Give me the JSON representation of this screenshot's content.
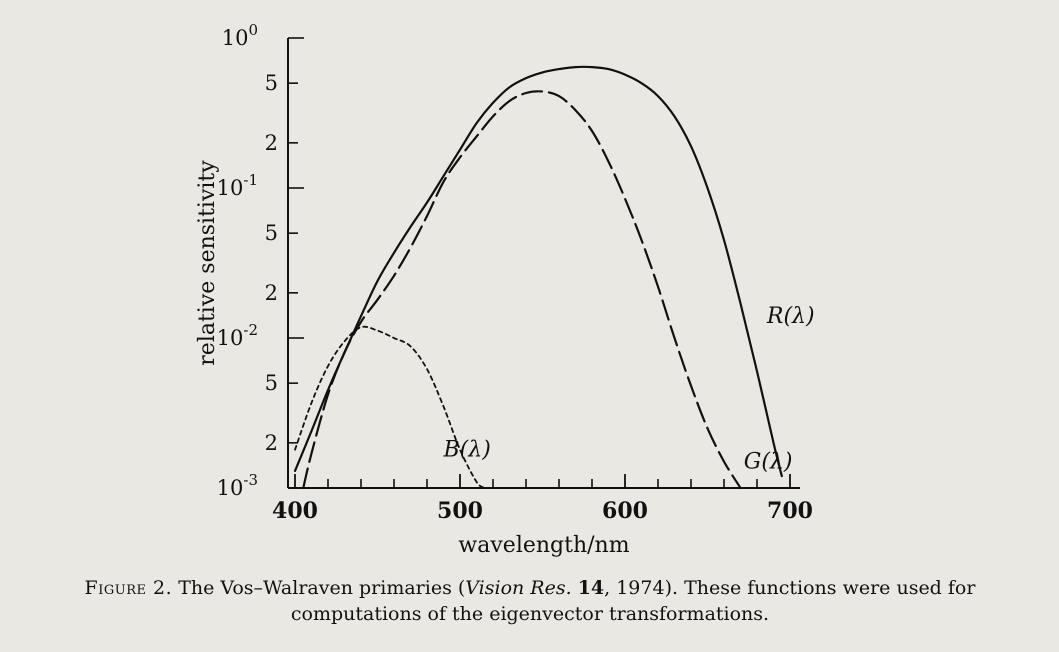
{
  "chart_data": {
    "type": "line",
    "xlabel": "wavelength/nm",
    "ylabel": "relative sensitivity",
    "xlim": [
      400,
      700
    ],
    "ylim": [
      0.001,
      1
    ],
    "yscale": "log",
    "grid": false,
    "x_ticks": [
      {
        "value": 400,
        "label": "400"
      },
      {
        "value": 500,
        "label": "500"
      },
      {
        "value": 600,
        "label": "600"
      },
      {
        "value": 700,
        "label": "700"
      }
    ],
    "y_ticks": [
      {
        "value": 0.001,
        "base": "10",
        "exp": "-3"
      },
      {
        "value": 0.002,
        "base": "2",
        "exp": ""
      },
      {
        "value": 0.005,
        "base": "5",
        "exp": ""
      },
      {
        "value": 0.01,
        "base": "10",
        "exp": "-2"
      },
      {
        "value": 0.02,
        "base": "2",
        "exp": ""
      },
      {
        "value": 0.05,
        "base": "5",
        "exp": ""
      },
      {
        "value": 0.1,
        "base": "10",
        "exp": "-1"
      },
      {
        "value": 0.2,
        "base": "2",
        "exp": ""
      },
      {
        "value": 0.5,
        "base": "5",
        "exp": ""
      },
      {
        "value": 1,
        "base": "10",
        "exp": "0"
      }
    ],
    "series": [
      {
        "name": "R(λ)",
        "style": "solid",
        "label_at": {
          "x": 686,
          "y": 0.014
        },
        "points": [
          [
            400,
            0.0013
          ],
          [
            410,
            0.0024
          ],
          [
            420,
            0.0045
          ],
          [
            430,
            0.008
          ],
          [
            440,
            0.014
          ],
          [
            450,
            0.024
          ],
          [
            460,
            0.037
          ],
          [
            470,
            0.055
          ],
          [
            480,
            0.08
          ],
          [
            490,
            0.12
          ],
          [
            500,
            0.18
          ],
          [
            510,
            0.27
          ],
          [
            520,
            0.37
          ],
          [
            530,
            0.47
          ],
          [
            540,
            0.54
          ],
          [
            550,
            0.59
          ],
          [
            560,
            0.62
          ],
          [
            570,
            0.64
          ],
          [
            580,
            0.64
          ],
          [
            590,
            0.62
          ],
          [
            600,
            0.57
          ],
          [
            610,
            0.5
          ],
          [
            620,
            0.41
          ],
          [
            630,
            0.3
          ],
          [
            640,
            0.19
          ],
          [
            650,
            0.1
          ],
          [
            660,
            0.045
          ],
          [
            670,
            0.017
          ],
          [
            680,
            0.006
          ],
          [
            690,
            0.002
          ],
          [
            695,
            0.0012
          ]
        ]
      },
      {
        "name": "G(λ)",
        "style": "dashed",
        "label_at": {
          "x": 672,
          "y": 0.0015
        },
        "points": [
          [
            405,
            0.001
          ],
          [
            410,
            0.0017
          ],
          [
            420,
            0.0042
          ],
          [
            430,
            0.008
          ],
          [
            440,
            0.0128
          ],
          [
            450,
            0.018
          ],
          [
            460,
            0.026
          ],
          [
            470,
            0.04
          ],
          [
            480,
            0.065
          ],
          [
            490,
            0.11
          ],
          [
            500,
            0.16
          ],
          [
            510,
            0.22
          ],
          [
            520,
            0.3
          ],
          [
            530,
            0.38
          ],
          [
            540,
            0.43
          ],
          [
            550,
            0.44
          ],
          [
            560,
            0.41
          ],
          [
            570,
            0.33
          ],
          [
            580,
            0.24
          ],
          [
            590,
            0.15
          ],
          [
            600,
            0.085
          ],
          [
            610,
            0.045
          ],
          [
            620,
            0.022
          ],
          [
            630,
            0.01
          ],
          [
            640,
            0.0048
          ],
          [
            650,
            0.0025
          ],
          [
            660,
            0.0015
          ],
          [
            670,
            0.001
          ]
        ]
      },
      {
        "name": "B(λ)",
        "style": "dotted",
        "label_at": {
          "x": 490,
          "y": 0.0018
        },
        "points": [
          [
            400,
            0.0018
          ],
          [
            410,
            0.0037
          ],
          [
            420,
            0.0065
          ],
          [
            430,
            0.0095
          ],
          [
            440,
            0.0118
          ],
          [
            450,
            0.0112
          ],
          [
            460,
            0.01
          ],
          [
            470,
            0.0088
          ],
          [
            480,
            0.0062
          ],
          [
            490,
            0.0035
          ],
          [
            500,
            0.0018
          ],
          [
            510,
            0.0011
          ],
          [
            515,
            0.001
          ]
        ]
      }
    ]
  },
  "caption": {
    "lead": "Figure 2.",
    "text1": " The Vos–Walraven primaries (",
    "journal": "Vision Res.",
    "volume": "14",
    "text2": ", 1974). These functions were used for computations of the eigenvector transformations."
  }
}
